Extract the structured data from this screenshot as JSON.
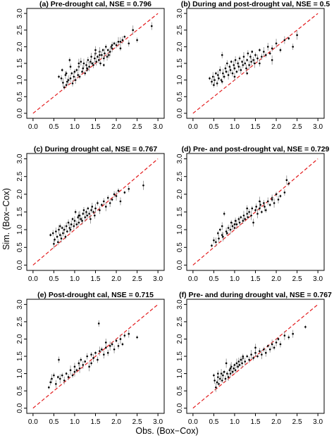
{
  "figure": {
    "ylabel": "Sim. (Box−Cox)",
    "xlabel": "Obs. (Box−Cox)"
  },
  "chart_data": [
    {
      "type": "scatter",
      "title": "(a) Pre-drought cal, NSE = 0.796",
      "xlim": [
        0,
        3
      ],
      "ylim": [
        0,
        3
      ],
      "xticks": [
        "0.0",
        "0.5",
        "1.0",
        "1.5",
        "2.0",
        "2.5",
        "3.0"
      ],
      "yticks": [
        "0.0",
        "0.5",
        "1.0",
        "1.5",
        "2.0",
        "2.5",
        "3.0"
      ],
      "reference_line": "1:1 dashed red",
      "x": [
        0.62,
        0.68,
        0.72,
        0.75,
        0.78,
        0.8,
        0.82,
        0.85,
        0.88,
        0.9,
        0.93,
        0.95,
        0.98,
        1.0,
        1.02,
        1.05,
        1.08,
        1.1,
        1.12,
        1.15,
        1.18,
        1.2,
        1.22,
        1.25,
        1.28,
        1.3,
        1.32,
        1.35,
        1.38,
        1.4,
        1.42,
        1.45,
        1.48,
        1.5,
        1.52,
        1.55,
        1.58,
        1.6,
        1.62,
        1.65,
        1.68,
        1.7,
        1.72,
        1.75,
        1.78,
        1.8,
        1.82,
        1.85,
        1.88,
        1.9,
        1.95,
        2.0,
        2.05,
        2.1,
        2.15,
        2.2,
        2.3,
        2.4,
        2.5,
        2.85,
        0.7,
        0.9,
        1.1,
        1.3,
        1.5,
        1.7,
        1.9,
        2.1,
        0.8,
        1.6
      ],
      "y": [
        1.1,
        1.05,
        0.92,
        0.78,
        1.15,
        0.85,
        0.95,
        1.0,
        1.6,
        1.05,
        1.2,
        0.9,
        1.1,
        1.25,
        1.0,
        1.3,
        1.15,
        1.4,
        1.1,
        1.55,
        1.25,
        1.35,
        1.5,
        1.2,
        1.45,
        1.3,
        1.6,
        1.4,
        1.55,
        1.7,
        1.5,
        1.45,
        1.65,
        1.8,
        1.55,
        1.7,
        1.6,
        1.85,
        1.5,
        1.75,
        1.9,
        1.65,
        1.8,
        2.0,
        1.7,
        1.9,
        1.75,
        1.85,
        2.0,
        1.95,
        2.1,
        2.05,
        2.15,
        1.95,
        2.2,
        2.3,
        2.1,
        2.5,
        2.2,
        2.62,
        1.3,
        1.4,
        1.5,
        1.35,
        1.9,
        1.45,
        2.05,
        2.15,
        1.2,
        1.75
      ]
    },
    {
      "type": "scatter",
      "title": "(b) During and post-drought val, NSE = 0.5",
      "xlim": [
        0,
        3
      ],
      "ylim": [
        0,
        3
      ],
      "xticks": [
        "0.0",
        "0.5",
        "1.0",
        "1.5",
        "2.0",
        "2.5",
        "3.0"
      ],
      "yticks": [
        "0.0",
        "0.5",
        "1.0",
        "1.5",
        "2.0",
        "2.5",
        "3.0"
      ],
      "reference_line": "1:1 dashed red",
      "x": [
        0.4,
        0.45,
        0.48,
        0.5,
        0.52,
        0.55,
        0.58,
        0.6,
        0.62,
        0.65,
        0.68,
        0.7,
        0.72,
        0.75,
        0.78,
        0.8,
        0.82,
        0.85,
        0.88,
        0.9,
        0.92,
        0.95,
        0.98,
        1.0,
        1.02,
        1.05,
        1.08,
        1.1,
        1.12,
        1.15,
        1.18,
        1.2,
        1.22,
        1.25,
        1.28,
        1.3,
        1.32,
        1.35,
        1.38,
        1.4,
        1.42,
        1.45,
        1.48,
        1.5,
        1.55,
        1.6,
        1.65,
        1.7,
        1.75,
        1.8,
        1.85,
        1.9,
        2.0,
        2.1,
        2.2,
        2.3,
        2.4,
        2.5,
        0.7,
        1.0,
        1.3,
        1.6,
        1.9
      ],
      "y": [
        1.05,
        0.95,
        1.1,
        0.85,
        1.0,
        1.2,
        0.9,
        1.15,
        1.05,
        1.3,
        1.0,
        1.75,
        1.2,
        1.1,
        1.35,
        1.25,
        1.5,
        1.15,
        1.4,
        1.3,
        1.55,
        1.2,
        1.45,
        1.35,
        1.6,
        1.25,
        1.5,
        1.4,
        1.65,
        1.3,
        1.55,
        1.45,
        1.7,
        1.5,
        1.35,
        1.6,
        1.8,
        1.45,
        1.7,
        1.55,
        1.85,
        1.6,
        1.5,
        1.75,
        1.65,
        1.9,
        1.7,
        1.85,
        1.75,
        2.0,
        1.8,
        1.95,
        2.1,
        1.9,
        2.2,
        2.25,
        2.0,
        2.35,
        0.95,
        1.1,
        1.2,
        1.5,
        1.6
      ]
    },
    {
      "type": "scatter",
      "title": "(c) During drought cal, NSE = 0.767",
      "xlim": [
        0,
        3
      ],
      "ylim": [
        0,
        3
      ],
      "xticks": [
        "0.0",
        "0.5",
        "1.0",
        "1.5",
        "2.0",
        "2.5",
        "3.0"
      ],
      "yticks": [
        "0.0",
        "0.5",
        "1.0",
        "1.5",
        "2.0",
        "2.5",
        "3.0"
      ],
      "reference_line": "1:1 dashed red",
      "x": [
        0.42,
        0.48,
        0.5,
        0.52,
        0.55,
        0.58,
        0.6,
        0.62,
        0.65,
        0.68,
        0.7,
        0.72,
        0.75,
        0.78,
        0.8,
        0.82,
        0.85,
        0.88,
        0.9,
        0.92,
        0.95,
        0.98,
        1.0,
        1.02,
        1.05,
        1.08,
        1.1,
        1.12,
        1.15,
        1.18,
        1.2,
        1.22,
        1.25,
        1.28,
        1.3,
        1.32,
        1.35,
        1.38,
        1.4,
        1.42,
        1.45,
        1.48,
        1.5,
        1.55,
        1.6,
        1.65,
        1.7,
        1.75,
        1.8,
        1.85,
        1.9,
        1.95,
        2.0,
        2.05,
        2.1,
        2.2,
        2.3,
        2.65,
        0.65,
        1.1
      ],
      "y": [
        0.85,
        0.9,
        0.6,
        0.72,
        0.95,
        0.8,
        0.65,
        1.0,
        0.85,
        0.75,
        1.05,
        0.9,
        1.0,
        0.8,
        1.1,
        0.95,
        1.2,
        1.05,
        1.0,
        1.15,
        1.3,
        1.1,
        1.25,
        1.5,
        1.15,
        1.35,
        1.2,
        1.4,
        1.3,
        1.25,
        1.45,
        1.55,
        1.35,
        1.5,
        1.4,
        1.6,
        1.45,
        1.3,
        1.55,
        1.65,
        1.5,
        1.4,
        1.6,
        1.75,
        1.55,
        1.7,
        1.8,
        1.65,
        1.9,
        1.75,
        1.85,
        2.0,
        1.95,
        2.1,
        1.8,
        2.05,
        2.15,
        2.25,
        1.1,
        1.4
      ]
    },
    {
      "type": "scatter",
      "title": "(d) Pre- and post-drought val, NSE = 0.729",
      "xlim": [
        0,
        3
      ],
      "ylim": [
        0,
        3
      ],
      "xticks": [
        "0.0",
        "0.5",
        "1.0",
        "1.5",
        "2.0",
        "2.5",
        "3.0"
      ],
      "yticks": [
        "0.0",
        "0.5",
        "1.0",
        "1.5",
        "2.0",
        "2.5",
        "3.0"
      ],
      "reference_line": "1:1 dashed red",
      "x": [
        0.45,
        0.5,
        0.55,
        0.6,
        0.62,
        0.65,
        0.7,
        0.72,
        0.75,
        0.8,
        0.82,
        0.85,
        0.9,
        0.92,
        0.95,
        1.0,
        1.02,
        1.05,
        1.1,
        1.12,
        1.15,
        1.2,
        1.22,
        1.25,
        1.3,
        1.32,
        1.35,
        1.4,
        1.42,
        1.45,
        1.5,
        1.52,
        1.55,
        1.6,
        1.62,
        1.65,
        1.7,
        1.72,
        1.75,
        1.8,
        1.85,
        1.9,
        1.95,
        2.0,
        2.05,
        2.1,
        2.2,
        2.25,
        2.3,
        0.7,
        1.0,
        1.3,
        1.6,
        1.9
      ],
      "y": [
        0.55,
        0.7,
        0.65,
        0.9,
        0.75,
        1.0,
        0.85,
        0.8,
        1.45,
        0.95,
        0.9,
        1.05,
        1.0,
        1.2,
        1.1,
        1.05,
        1.25,
        1.15,
        1.3,
        1.2,
        1.35,
        1.25,
        1.4,
        1.3,
        1.45,
        1.35,
        1.5,
        1.4,
        1.6,
        1.2,
        1.55,
        1.65,
        1.45,
        1.6,
        1.7,
        1.5,
        1.75,
        1.65,
        1.55,
        1.8,
        1.7,
        1.9,
        1.75,
        2.0,
        1.85,
        1.95,
        2.05,
        2.4,
        2.3,
        1.1,
        1.15,
        1.6,
        1.8,
        1.85
      ]
    },
    {
      "type": "scatter",
      "title": "(e) Post-drought cal, NSE = 0.715",
      "xlim": [
        0,
        3
      ],
      "ylim": [
        0,
        3
      ],
      "xticks": [
        "0.0",
        "0.5",
        "1.0",
        "1.5",
        "2.0",
        "2.5",
        "3.0"
      ],
      "yticks": [
        "0.0",
        "0.5",
        "1.0",
        "1.5",
        "2.0",
        "2.5",
        "3.0"
      ],
      "reference_line": "1:1 dashed red",
      "x": [
        0.38,
        0.42,
        0.45,
        0.5,
        0.55,
        0.6,
        0.62,
        0.65,
        0.7,
        0.75,
        0.8,
        0.85,
        0.9,
        0.95,
        1.0,
        1.05,
        1.1,
        1.12,
        1.15,
        1.2,
        1.25,
        1.3,
        1.35,
        1.4,
        1.45,
        1.5,
        1.55,
        1.6,
        1.65,
        1.7,
        1.75,
        1.8,
        1.85,
        1.9,
        1.95,
        2.0,
        2.05,
        2.1,
        2.2,
        2.3,
        2.5,
        1.58,
        1.0,
        1.4,
        1.75,
        2.15
      ],
      "y": [
        0.6,
        0.75,
        0.85,
        0.95,
        0.7,
        0.9,
        1.4,
        0.85,
        0.95,
        0.8,
        1.0,
        0.9,
        1.1,
        0.95,
        1.2,
        1.1,
        1.3,
        1.15,
        1.4,
        1.25,
        1.35,
        1.5,
        1.2,
        1.55,
        1.45,
        1.6,
        1.4,
        1.65,
        1.7,
        1.55,
        1.75,
        1.6,
        1.8,
        1.85,
        1.7,
        1.95,
        1.8,
        2.0,
        2.1,
        2.15,
        2.05,
        2.45,
        1.05,
        1.3,
        1.9,
        1.85
      ]
    },
    {
      "type": "scatter",
      "title": "(f) Pre- and during drought val, NSE = 0.767",
      "xlim": [
        0,
        3
      ],
      "ylim": [
        0,
        3
      ],
      "xticks": [
        "0.0",
        "0.5",
        "1.0",
        "1.5",
        "2.0",
        "2.5",
        "3.0"
      ],
      "yticks": [
        "0.0",
        "0.5",
        "1.0",
        "1.5",
        "2.0",
        "2.5",
        "3.0"
      ],
      "reference_line": "1:1 dashed red",
      "x": [
        0.5,
        0.52,
        0.55,
        0.58,
        0.6,
        0.62,
        0.65,
        0.68,
        0.7,
        0.72,
        0.75,
        0.78,
        0.8,
        0.82,
        0.85,
        0.88,
        0.9,
        0.92,
        0.95,
        0.98,
        1.0,
        1.02,
        1.05,
        1.08,
        1.1,
        1.12,
        1.15,
        1.18,
        1.2,
        1.25,
        1.3,
        1.35,
        1.4,
        1.45,
        1.5,
        1.55,
        1.6,
        1.65,
        1.7,
        1.75,
        1.8,
        1.85,
        1.9,
        1.95,
        2.0,
        2.05,
        2.1,
        2.2,
        2.3,
        2.4,
        2.7,
        0.6,
        0.9,
        1.2,
        1.5
      ],
      "y": [
        0.95,
        0.8,
        0.6,
        0.75,
        0.9,
        0.7,
        0.85,
        1.0,
        0.8,
        0.95,
        1.05,
        0.85,
        1.3,
        1.0,
        0.9,
        1.1,
        1.0,
        1.2,
        1.05,
        1.15,
        1.25,
        1.1,
        1.3,
        1.2,
        1.35,
        1.25,
        1.4,
        1.3,
        1.45,
        1.35,
        1.5,
        1.4,
        1.55,
        1.45,
        1.6,
        1.5,
        1.65,
        1.55,
        1.7,
        1.6,
        1.8,
        1.7,
        1.85,
        1.75,
        1.9,
        2.0,
        1.85,
        2.1,
        2.05,
        2.15,
        2.35,
        1.0,
        1.15,
        1.5,
        1.75
      ]
    }
  ]
}
